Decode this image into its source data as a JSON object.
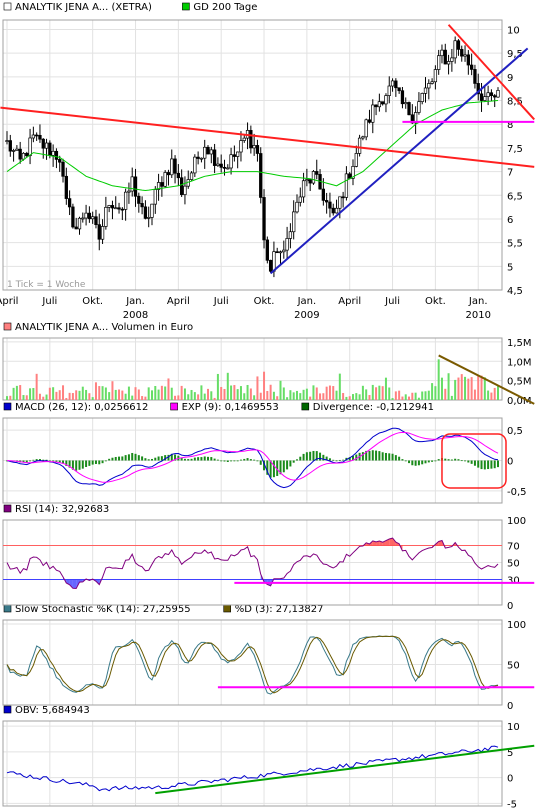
{
  "chart_data": [
    {
      "type": "candlestick",
      "legend": [
        {
          "name": "ANALYTIK JENA A... (XETRA)",
          "color": "#ffffff",
          "border": "#000000"
        },
        {
          "name": "GD 200 Tage",
          "color": "#00cc00"
        }
      ],
      "yticks": [
        "10",
        "9,5",
        "9",
        "8,5",
        "8",
        "7,5",
        "7",
        "6,5",
        "6",
        "5,5",
        "5",
        "4,5"
      ],
      "ylim": [
        4.5,
        10.2
      ],
      "xticks": [
        "April",
        "Juli",
        "Okt.",
        "Jan.",
        "April",
        "Juli",
        "Okt.",
        "Jan.",
        "April",
        "Juli",
        "Okt.",
        "Jan."
      ],
      "year_labels": [
        {
          "label": "2008",
          "after": "Jan.",
          "index": 3
        },
        {
          "label": "2009",
          "after": "Jan.",
          "index": 7
        },
        {
          "label": "2010",
          "after": "Jan.",
          "index": 11
        }
      ],
      "note": "1 Tick = 1 Woche",
      "weeks": 150,
      "price_keypoints": [
        [
          0,
          7.6
        ],
        [
          4,
          7.2
        ],
        [
          8,
          7.7
        ],
        [
          12,
          7.5
        ],
        [
          16,
          7.3
        ],
        [
          18,
          6.3
        ],
        [
          21,
          5.8
        ],
        [
          24,
          6.2
        ],
        [
          28,
          5.6
        ],
        [
          31,
          6.4
        ],
        [
          35,
          6.2
        ],
        [
          38,
          6.8
        ],
        [
          42,
          5.9
        ],
        [
          46,
          6.7
        ],
        [
          50,
          7.2
        ],
        [
          53,
          6.6
        ],
        [
          56,
          7.0
        ],
        [
          60,
          7.6
        ],
        [
          63,
          7.3
        ],
        [
          66,
          7.1
        ],
        [
          70,
          7.4
        ],
        [
          73,
          7.8
        ],
        [
          76,
          7.4
        ],
        [
          78,
          5.5
        ],
        [
          80,
          4.9
        ],
        [
          82,
          5.4
        ],
        [
          84,
          5.2
        ],
        [
          86,
          5.9
        ],
        [
          90,
          6.7
        ],
        [
          93,
          6.9
        ],
        [
          96,
          6.5
        ],
        [
          99,
          6.0
        ],
        [
          102,
          6.6
        ],
        [
          105,
          7.2
        ],
        [
          108,
          7.8
        ],
        [
          111,
          8.3
        ],
        [
          114,
          8.6
        ],
        [
          117,
          8.8
        ],
        [
          120,
          8.4
        ],
        [
          123,
          8.2
        ],
        [
          126,
          8.6
        ],
        [
          129,
          8.9
        ],
        [
          132,
          9.5
        ],
        [
          134,
          9.3
        ],
        [
          136,
          9.7
        ],
        [
          138,
          9.5
        ],
        [
          141,
          9.2
        ],
        [
          143,
          8.7
        ],
        [
          146,
          8.5
        ],
        [
          149,
          8.6
        ]
      ],
      "ma200_keypoints": [
        [
          0,
          7.0
        ],
        [
          8,
          7.4
        ],
        [
          16,
          7.3
        ],
        [
          24,
          6.9
        ],
        [
          32,
          6.7
        ],
        [
          42,
          6.6
        ],
        [
          52,
          6.7
        ],
        [
          60,
          6.9
        ],
        [
          68,
          7.0
        ],
        [
          76,
          7.0
        ],
        [
          84,
          6.9
        ],
        [
          92,
          6.85
        ],
        [
          100,
          6.7
        ],
        [
          108,
          7.0
        ],
        [
          116,
          7.5
        ],
        [
          124,
          8.0
        ],
        [
          132,
          8.3
        ],
        [
          140,
          8.45
        ],
        [
          149,
          8.5
        ]
      ],
      "annotations": [
        {
          "kind": "trendline",
          "color": "#ff2020",
          "from": [
            -2,
            8.35
          ],
          "to": [
            160,
            7.1
          ]
        },
        {
          "kind": "trendline",
          "color": "#2020c0",
          "from": [
            80,
            4.85
          ],
          "to": [
            158,
            9.6
          ]
        },
        {
          "kind": "trendline",
          "color": "#ff2020",
          "from": [
            134,
            10.1
          ],
          "to": [
            160,
            8.1
          ]
        },
        {
          "kind": "support",
          "color": "#ff00ff",
          "from": [
            120,
            8.05
          ],
          "to": [
            160,
            8.05
          ]
        }
      ]
    },
    {
      "type": "bar",
      "legend": [
        {
          "name": "ANALYTIK JENA A... Volumen in Euro",
          "color": "#ff8080"
        }
      ],
      "yticks": [
        "1,5M",
        "1,0M",
        "0,5M",
        "0,0M"
      ],
      "ylim": [
        0,
        1.6
      ],
      "annotations": [
        {
          "kind": "trendline",
          "color": "#7a5a00",
          "from": [
            131,
            1.15
          ],
          "to": [
            160,
            -0.1
          ]
        }
      ]
    },
    {
      "type": "line",
      "legend": [
        {
          "name": "MACD (26, 12): 0,0256612",
          "color": "#0000cc"
        },
        {
          "name": "EXP (9): 0,1469553",
          "color": "#ff00ff"
        },
        {
          "name": "Divergence: -0,1212941",
          "color": "#006600"
        }
      ],
      "yticks": [
        "0,5",
        "0",
        "-0,5"
      ],
      "ylim": [
        -0.7,
        0.7
      ],
      "highlight": {
        "kind": "box",
        "color": "#ff2020"
      }
    },
    {
      "type": "line",
      "legend": [
        {
          "name": "RSI (14): 32,92683",
          "color": "#800080"
        }
      ],
      "yticks": [
        "100",
        "70",
        "50",
        "30",
        "0"
      ],
      "ylim": [
        0,
        100
      ],
      "bands": [
        {
          "value": 70,
          "color": "#ff6060"
        },
        {
          "value": 30,
          "color": "#4040ff"
        }
      ],
      "annotations": [
        {
          "kind": "support",
          "color": "#ff00ff",
          "from": [
            69,
            26
          ],
          "to": [
            160,
            26
          ]
        }
      ]
    },
    {
      "type": "line",
      "legend": [
        {
          "name": "Slow Stochastic %K (14): 27,25955",
          "color": "#3a7a8a"
        },
        {
          "name": "%D (3): 27,13827",
          "color": "#6a5a00"
        }
      ],
      "yticks": [
        "100",
        "50",
        "0"
      ],
      "ylim": [
        0,
        105
      ],
      "annotations": [
        {
          "kind": "support",
          "color": "#ff00ff",
          "from": [
            64,
            22
          ],
          "to": [
            160,
            22
          ]
        }
      ]
    },
    {
      "type": "line",
      "legend": [
        {
          "name": "OBV: 5,684943",
          "color": "#0000cc"
        }
      ],
      "yticks": [
        "10",
        "5",
        "0",
        "-5"
      ],
      "ylim": [
        -5.5,
        11
      ],
      "annotations": [
        {
          "kind": "trendline",
          "color": "#00a000",
          "from": [
            45,
            -3.0
          ],
          "to": [
            160,
            6.2
          ]
        }
      ]
    }
  ]
}
